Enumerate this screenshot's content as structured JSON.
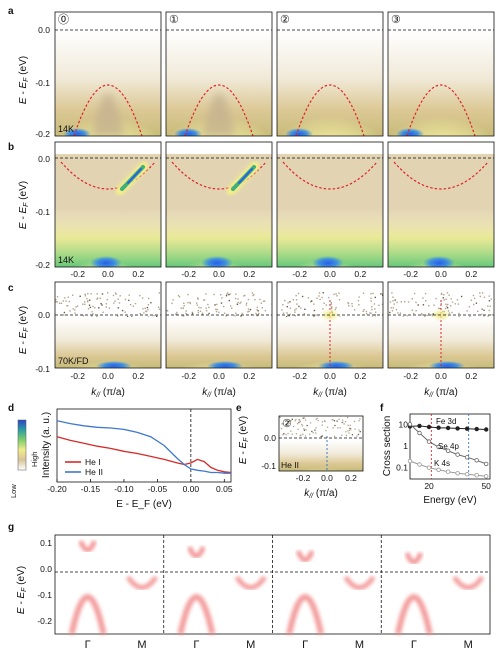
{
  "panel_labels": [
    "a",
    "b",
    "c",
    "d",
    "e",
    "f",
    "g"
  ],
  "samples": [
    "⓪",
    "①",
    "②",
    "③"
  ],
  "e_panel_sample": "②",
  "temps": {
    "a": "14K",
    "b": "14K",
    "c": "70K/FD",
    "e": "He II"
  },
  "axes": {
    "y_label_E": "E - E",
    "y_label_E_sub": "F",
    "y_label_unit": " (eV)",
    "k_label": "k",
    "k_sub": "//",
    "k_unit": " (π/a)",
    "ticks_y_ab": [
      "0.0",
      "-0.1",
      "-0.2"
    ],
    "ticks_y_c": [
      "0.0",
      "-0.1"
    ],
    "ticks_y_e": [
      "0.0",
      "-0.1"
    ],
    "ticks_y_g": [
      "0.1",
      "0.0",
      "-0.1",
      "-0.2"
    ],
    "ticks_k": [
      "-0.2",
      "0.0",
      "0.2"
    ]
  },
  "colorbar": {
    "high": "High",
    "low": "Low"
  },
  "chart_data": [
    {
      "panel": "d",
      "type": "line",
      "xlabel": "E - E_F (eV)",
      "ylabel": "Intensity (a. u.)",
      "xlim": [
        -0.2,
        0.06
      ],
      "xticks": [
        "-0.20",
        "-0.15",
        "-0.10",
        "-0.05",
        "0.00",
        "0.05"
      ],
      "legend_position": "lower-left",
      "series": [
        {
          "name": "He I",
          "color": "#d62a2a",
          "x": [
            -0.2,
            -0.18,
            -0.16,
            -0.14,
            -0.12,
            -0.1,
            -0.08,
            -0.06,
            -0.04,
            -0.02,
            -0.01,
            0.0,
            0.01,
            0.02,
            0.03,
            0.04,
            0.05,
            0.06
          ],
          "y": [
            0.62,
            0.57,
            0.53,
            0.49,
            0.46,
            0.42,
            0.39,
            0.35,
            0.31,
            0.26,
            0.24,
            0.26,
            0.31,
            0.28,
            0.2,
            0.16,
            0.14,
            0.13
          ]
        },
        {
          "name": "He II",
          "color": "#3f78cf",
          "x": [
            -0.2,
            -0.18,
            -0.16,
            -0.14,
            -0.12,
            -0.1,
            -0.08,
            -0.06,
            -0.04,
            -0.02,
            -0.01,
            0.0,
            0.01,
            0.02,
            0.03,
            0.04,
            0.05,
            0.06
          ],
          "y": [
            0.84,
            0.8,
            0.77,
            0.75,
            0.74,
            0.72,
            0.68,
            0.62,
            0.5,
            0.32,
            0.24,
            0.18,
            0.16,
            0.15,
            0.13,
            0.13,
            0.12,
            0.12
          ]
        }
      ]
    },
    {
      "panel": "f",
      "type": "line",
      "xlabel": "Energy (eV)",
      "ylabel": "Cross section",
      "xlim": [
        10,
        52
      ],
      "ylog": true,
      "xticks": [
        "20",
        "50"
      ],
      "yticks": [
        "0.1",
        "1",
        "10"
      ],
      "annotations": [
        "Fe 3d",
        "Se 4p",
        "K 4s"
      ],
      "series": [
        {
          "name": "Fe 3d",
          "color": "#222222",
          "x": [
            10,
            15,
            20,
            25,
            30,
            35,
            40,
            45,
            50
          ],
          "y": [
            8,
            8.5,
            7.5,
            7,
            6.8,
            6.5,
            6.3,
            6,
            5.8
          ]
        },
        {
          "name": "Se 4p",
          "color": "#666666",
          "x": [
            10,
            15,
            20,
            25,
            30,
            35,
            40,
            45,
            50
          ],
          "y": [
            10,
            4,
            1.6,
            0.9,
            0.6,
            0.4,
            0.3,
            0.22,
            0.15
          ]
        },
        {
          "name": "K 4s",
          "color": "#999999",
          "x": [
            10,
            15,
            20,
            25,
            30,
            35,
            40,
            45,
            50
          ],
          "y": [
            0.2,
            0.14,
            0.1,
            0.08,
            0.065,
            0.055,
            0.05,
            0.045,
            0.04
          ]
        }
      ],
      "vlines": [
        {
          "x": 21.2,
          "color": "#d62a2a"
        },
        {
          "x": 40.8,
          "color": "#3f78cf"
        }
      ]
    }
  ],
  "g_labels": [
    "Γ",
    "M",
    "Γ",
    "M",
    "Γ",
    "M",
    "Γ",
    "M"
  ]
}
